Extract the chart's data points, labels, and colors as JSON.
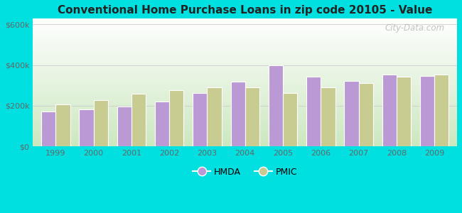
{
  "title": "Conventional Home Purchase Loans in zip code 20105 - Value",
  "years": [
    1999,
    2000,
    2001,
    2002,
    2003,
    2004,
    2005,
    2006,
    2007,
    2008,
    2009
  ],
  "hmda": [
    170000,
    182000,
    197000,
    222000,
    262000,
    318000,
    400000,
    342000,
    322000,
    352000,
    348000
  ],
  "pmic": [
    207000,
    228000,
    258000,
    278000,
    292000,
    292000,
    262000,
    292000,
    312000,
    342000,
    355000
  ],
  "hmda_color": "#bb99d4",
  "pmic_color": "#c8cc90",
  "background_top": "#f0faf0",
  "background_bottom": "#c8ecc0",
  "outer_background": "#00e0e0",
  "ylabel_ticks": [
    "$0",
    "$200k",
    "$400k",
    "$600k"
  ],
  "ytick_values": [
    0,
    200000,
    400000,
    600000
  ],
  "ylim": [
    0,
    630000
  ],
  "bar_width": 0.38,
  "watermark": "City-Data.com",
  "legend_labels": [
    "HMDA",
    "PMIC"
  ]
}
